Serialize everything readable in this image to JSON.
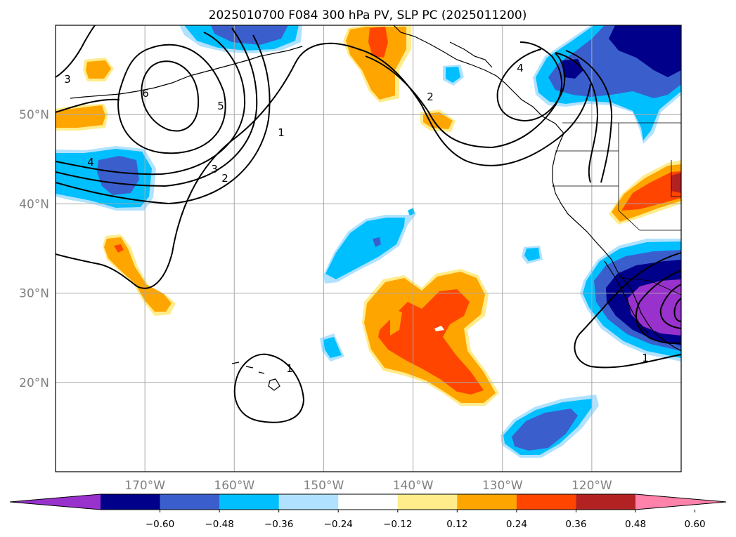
{
  "title": "2025010700 F084 300 hPa PV, SLP PC (2025011200)",
  "map": {
    "lon_ticks": [
      {
        "lon": -170,
        "label": "170°W"
      },
      {
        "lon": -160,
        "label": "160°W"
      },
      {
        "lon": -150,
        "label": "150°W"
      },
      {
        "lon": -140,
        "label": "140°W"
      },
      {
        "lon": -130,
        "label": "130°W"
      },
      {
        "lon": -120,
        "label": "120°W"
      }
    ],
    "lat_ticks": [
      {
        "lat": 50,
        "label": "50°N"
      },
      {
        "lat": 40,
        "label": "40°N"
      },
      {
        "lat": 30,
        "label": "30°N"
      },
      {
        "lat": 20,
        "label": "20°N"
      }
    ],
    "extent": {
      "lon_min": -180,
      "lon_max": -110,
      "lat_min": 10,
      "lat_max": 60
    },
    "grid": true
  },
  "colorbar": {
    "colors": [
      "#9932cc",
      "#00008b",
      "#3a5fcd",
      "#00bfff",
      "#b0e2ff",
      "#ffffff",
      "#ffec8b",
      "#ffa500",
      "#ff4500",
      "#b22222",
      "#ff82ab"
    ],
    "tick_labels": [
      "−0.60",
      "−0.48",
      "−0.36",
      "−0.24",
      "−0.12",
      "0.12",
      "0.24",
      "0.36",
      "0.48",
      "0.60"
    ],
    "extend": "both"
  },
  "contour_labels": [
    "3",
    "6",
    "5",
    "1",
    "4",
    "3",
    "2",
    "2",
    "4",
    "1",
    "1"
  ]
}
